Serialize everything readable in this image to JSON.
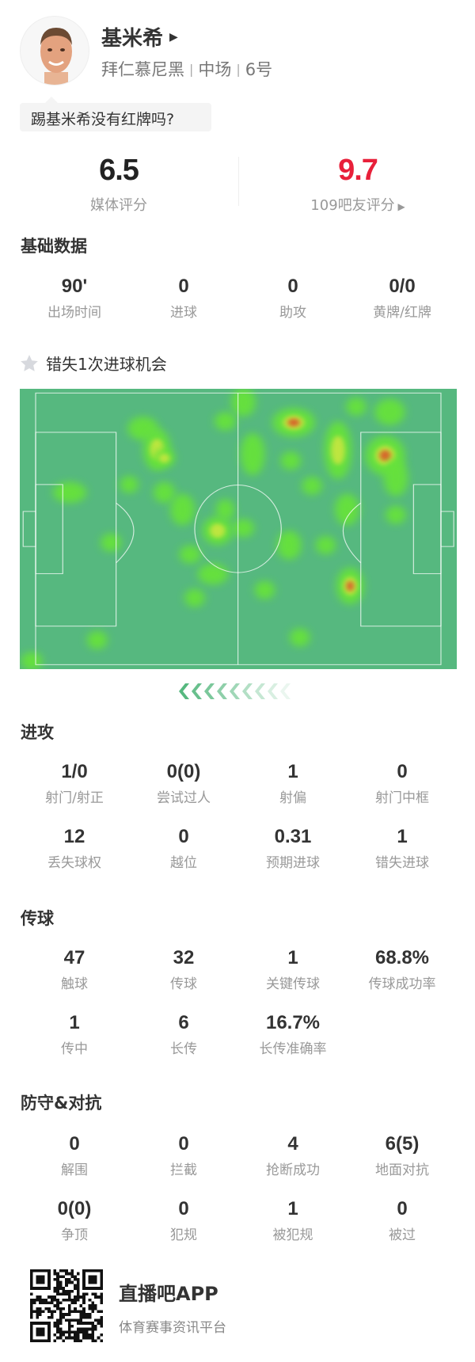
{
  "player": {
    "name": "基米希",
    "team": "拜仁慕尼黑",
    "position": "中场",
    "number": "6号",
    "comment": "踢基米希没有红牌吗?"
  },
  "ratings": {
    "media_score": "6.5",
    "media_label": "媒体评分",
    "fan_score": "9.7",
    "fan_label": "109吧友评分",
    "fan_color": "#e8203a"
  },
  "basic": {
    "title": "基础数据",
    "stats": [
      {
        "value": "90'",
        "label": "出场时间"
      },
      {
        "value": "0",
        "label": "进球"
      },
      {
        "value": "0",
        "label": "助攻"
      },
      {
        "value": "0/0",
        "label": "黄牌/红牌"
      }
    ]
  },
  "highlight": {
    "icon": "star-icon",
    "text": "错失1次进球机会"
  },
  "heatmap": {
    "pitch_color": "#56b87f",
    "attack_direction": "left"
  },
  "attack": {
    "title": "进攻",
    "stats": [
      {
        "value": "1/0",
        "label": "射门/射正"
      },
      {
        "value": "0(0)",
        "label": "尝试过人"
      },
      {
        "value": "1",
        "label": "射偏"
      },
      {
        "value": "0",
        "label": "射门中框"
      },
      {
        "value": "12",
        "label": "丢失球权"
      },
      {
        "value": "0",
        "label": "越位"
      },
      {
        "value": "0.31",
        "label": "预期进球"
      },
      {
        "value": "1",
        "label": "错失进球"
      }
    ]
  },
  "passing": {
    "title": "传球",
    "stats": [
      {
        "value": "47",
        "label": "触球"
      },
      {
        "value": "32",
        "label": "传球"
      },
      {
        "value": "1",
        "label": "关键传球"
      },
      {
        "value": "68.8%",
        "label": "传球成功率"
      },
      {
        "value": "1",
        "label": "传中"
      },
      {
        "value": "6",
        "label": "长传"
      },
      {
        "value": "16.7%",
        "label": "长传准确率"
      }
    ]
  },
  "defense": {
    "title": "防守&对抗",
    "stats": [
      {
        "value": "0",
        "label": "解围"
      },
      {
        "value": "0",
        "label": "拦截"
      },
      {
        "value": "4",
        "label": "抢断成功"
      },
      {
        "value": "6(5)",
        "label": "地面对抗"
      },
      {
        "value": "0(0)",
        "label": "争顶"
      },
      {
        "value": "0",
        "label": "犯规"
      },
      {
        "value": "1",
        "label": "被犯规"
      },
      {
        "value": "0",
        "label": "被过"
      }
    ]
  },
  "footer": {
    "app_name": "直播吧APP",
    "tagline": "体育赛事资讯平台"
  }
}
